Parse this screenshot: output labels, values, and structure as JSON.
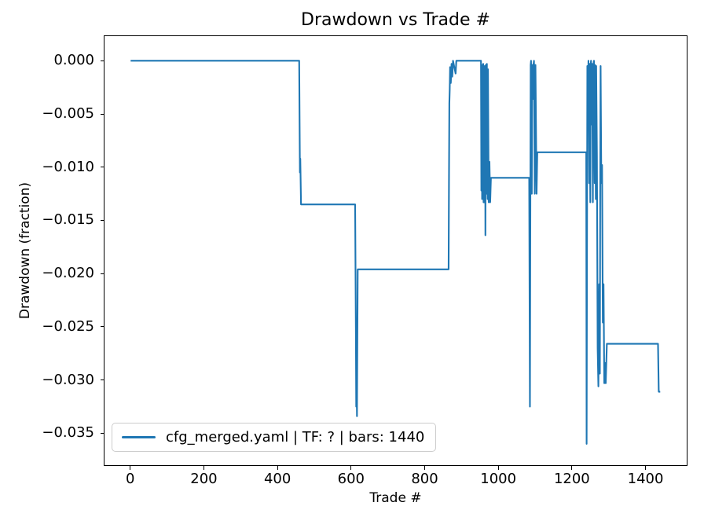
{
  "chart_data": {
    "type": "line",
    "title": "Drawdown vs Trade #",
    "xlabel": "Trade #",
    "ylabel": "Drawdown (fraction)",
    "xlim": [
      -70,
      1512
    ],
    "ylim": [
      -0.038,
      0.00231
    ],
    "grid": false,
    "x_ticks": [
      {
        "value": 0,
        "label": "0"
      },
      {
        "value": 200,
        "label": "200"
      },
      {
        "value": 400,
        "label": "400"
      },
      {
        "value": 600,
        "label": "600"
      },
      {
        "value": 800,
        "label": "800"
      },
      {
        "value": 1000,
        "label": "1000"
      },
      {
        "value": 1200,
        "label": "1200"
      },
      {
        "value": 1400,
        "label": "1400"
      }
    ],
    "y_ticks": [
      {
        "value": 0.0,
        "label": "0.000"
      },
      {
        "value": -0.005,
        "label": "−0.005"
      },
      {
        "value": -0.01,
        "label": "−0.010"
      },
      {
        "value": -0.015,
        "label": "−0.015"
      },
      {
        "value": -0.02,
        "label": "−0.020"
      },
      {
        "value": -0.025,
        "label": "−0.025"
      },
      {
        "value": -0.03,
        "label": "−0.030"
      },
      {
        "value": -0.035,
        "label": "−0.035"
      }
    ],
    "colors": {
      "line": "#1f77b4",
      "axis": "#000000",
      "legend_border": "#cccccc",
      "background": "#ffffff"
    },
    "legend": {
      "position": "lower left",
      "entries": [
        {
          "label": "cfg_merged.yaml | TF: ? | bars: 1440",
          "color": "#1f77b4"
        }
      ]
    },
    "series": [
      {
        "name": "cfg_merged.yaml | TF: ? | bars: 1440",
        "points": [
          [
            1,
            0
          ],
          [
            459,
            0
          ],
          [
            461,
            -0.0105
          ],
          [
            462,
            -0.0092
          ],
          [
            464,
            -0.0135
          ],
          [
            611,
            -0.0135
          ],
          [
            613,
            -0.025
          ],
          [
            614,
            -0.0325
          ],
          [
            615,
            -0.03
          ],
          [
            616,
            -0.0334
          ],
          [
            618,
            -0.0196
          ],
          [
            865,
            -0.0196
          ],
          [
            866,
            -0.0115
          ],
          [
            867,
            -0.004
          ],
          [
            868,
            -0.0028
          ],
          [
            869,
            -0.0006
          ],
          [
            871,
            -0.0021
          ],
          [
            873,
            -0.0003
          ],
          [
            875,
            -0.0015
          ],
          [
            877,
            0
          ],
          [
            884,
            -0.0012
          ],
          [
            886,
            0
          ],
          [
            953,
            0
          ],
          [
            954,
            -0.0122
          ],
          [
            955,
            -0.0004
          ],
          [
            956,
            -0.013
          ],
          [
            957,
            -0.0005
          ],
          [
            958,
            -0.0122
          ],
          [
            959,
            -0.0003
          ],
          [
            960,
            -0.0133
          ],
          [
            961,
            -0.0005
          ],
          [
            963,
            -0.0133
          ],
          [
            964,
            -0.0005
          ],
          [
            965,
            -0.0164
          ],
          [
            966,
            -0.0004
          ],
          [
            968,
            -0.0125
          ],
          [
            969,
            -0.0003
          ],
          [
            971,
            -0.013
          ],
          [
            972,
            -0.0008
          ],
          [
            974,
            -0.0133
          ],
          [
            976,
            -0.0095
          ],
          [
            978,
            -0.0133
          ],
          [
            980,
            -0.011
          ],
          [
            1084,
            -0.011
          ],
          [
            1086,
            -0.0325
          ],
          [
            1088,
            -0.0004
          ],
          [
            1089,
            0
          ],
          [
            1091,
            -0.0125
          ],
          [
            1092,
            -0.0004
          ],
          [
            1094,
            -0.0036
          ],
          [
            1095,
            -0.0005
          ],
          [
            1097,
            0
          ],
          [
            1099,
            -0.0125
          ],
          [
            1101,
            -0.0004
          ],
          [
            1104,
            -0.0125
          ],
          [
            1106,
            -0.0086
          ],
          [
            1239,
            -0.0086
          ],
          [
            1240,
            -0.036
          ],
          [
            1242,
            -0.0005
          ],
          [
            1244,
            -0.002
          ],
          [
            1245,
            0
          ],
          [
            1247,
            -0.0115
          ],
          [
            1248,
            -0.0003
          ],
          [
            1250,
            -0.0133
          ],
          [
            1251,
            -0.0005
          ],
          [
            1252,
            0
          ],
          [
            1254,
            -0.006
          ],
          [
            1255,
            -0.0003
          ],
          [
            1257,
            -0.0133
          ],
          [
            1258,
            -0.0005
          ],
          [
            1260,
            0
          ],
          [
            1262,
            -0.0115
          ],
          [
            1263,
            -0.0004
          ],
          [
            1265,
            -0.013
          ],
          [
            1266,
            -0.0005
          ],
          [
            1268,
            -0.0089
          ],
          [
            1270,
            -0.027
          ],
          [
            1272,
            -0.0306
          ],
          [
            1274,
            -0.021
          ],
          [
            1276,
            -0.0294
          ],
          [
            1277,
            -0.0115
          ],
          [
            1278,
            -0.0005
          ],
          [
            1280,
            -0.0115
          ],
          [
            1282,
            -0.0098
          ],
          [
            1284,
            -0.0246
          ],
          [
            1286,
            -0.021
          ],
          [
            1288,
            -0.0303
          ],
          [
            1290,
            -0.0284
          ],
          [
            1292,
            -0.0303
          ],
          [
            1295,
            -0.0266
          ],
          [
            1434,
            -0.0266
          ],
          [
            1436,
            -0.0311
          ],
          [
            1440,
            -0.0311
          ]
        ]
      }
    ]
  }
}
